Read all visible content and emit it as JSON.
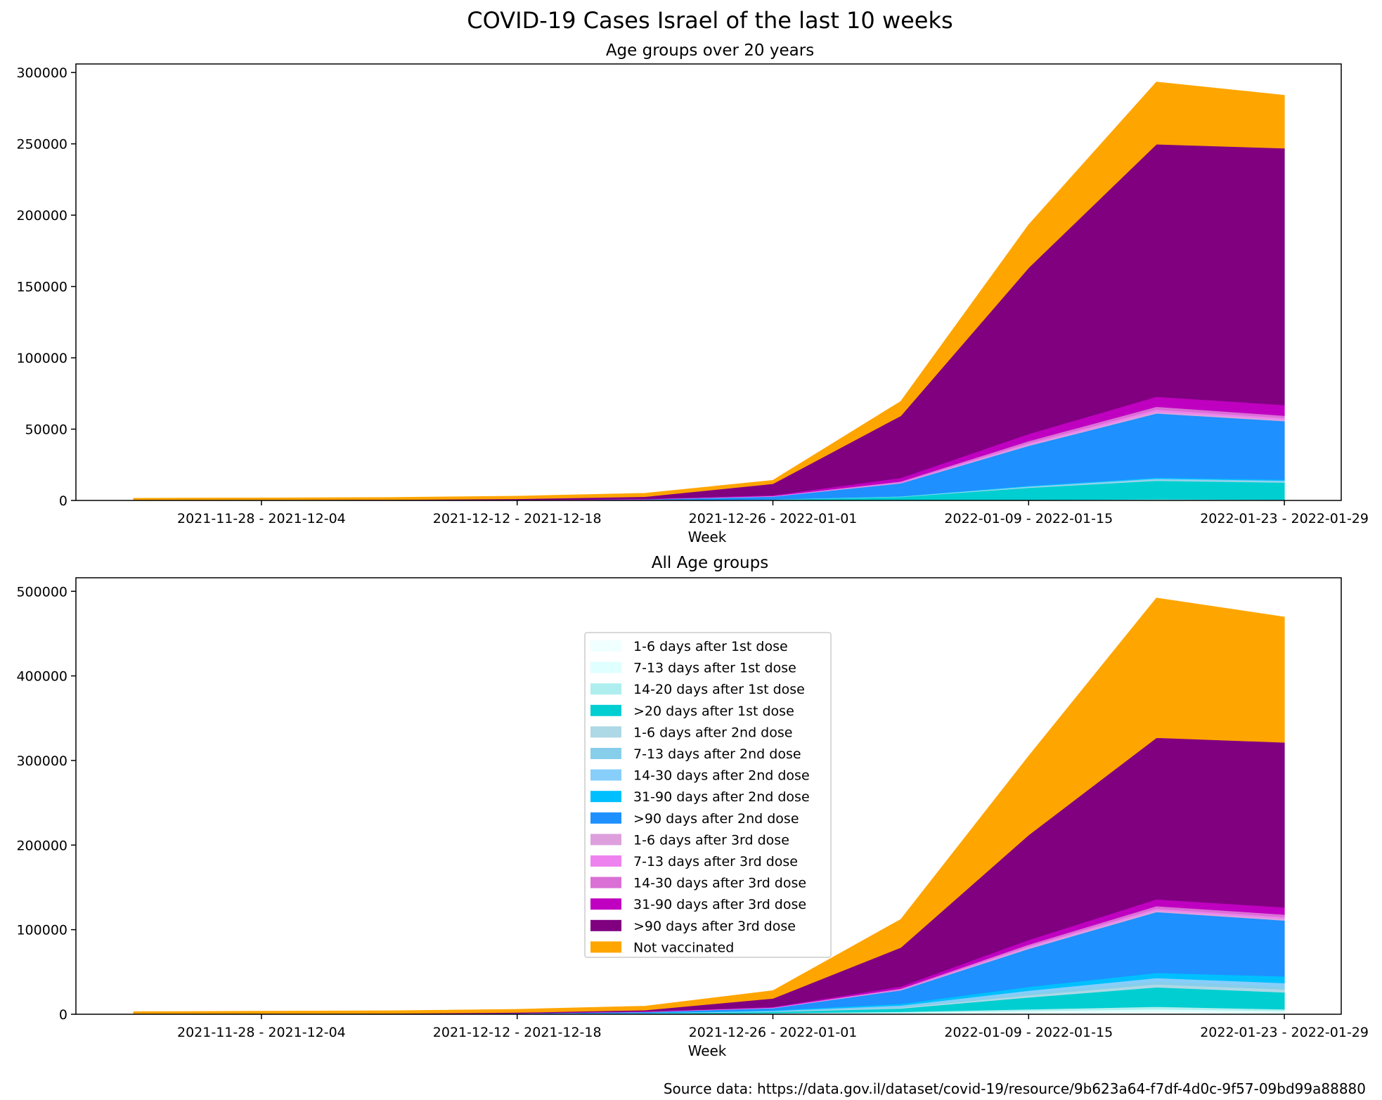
{
  "suptitle": "COVID-19 Cases Israel of the last 10 weeks",
  "source_note": "Source data: https://data.gov.il/dataset/covid-19/resource/9b623a64-f7df-4d0c-9f57-09bd99a88880",
  "series_colors": {
    "1-6 days after 1st dose": "#f0ffff",
    "7-13 days after 1st dose": "#e0ffff",
    "14-20 days after 1st dose": "#afeeee",
    ">20 days after 1st dose": "#00ced1",
    "1-6 days after 2nd dose": "#add8e6",
    "7-13 days after 2nd dose": "#87ceeb",
    "14-30 days after 2nd dose": "#87cefa",
    "31-90 days after 2nd dose": "#00bfff",
    ">90 days after 2nd dose": "#1e90ff",
    "1-6 days after 3rd dose": "#dda0dd",
    "7-13 days after 3rd dose": "#ee82ee",
    "14-30 days after 3rd dose": "#da70d6",
    "31-90 days after 3rd dose": "#c000c0",
    ">90 days after 3rd dose": "#800080",
    "Not vaccinated": "#ffa500"
  },
  "legend": {
    "placement": "center (lower panel)",
    "entries": [
      "1-6 days after 1st dose",
      "7-13 days after 1st dose",
      "14-20 days after 1st dose",
      ">20 days after 1st dose",
      "1-6 days after 2nd dose",
      "7-13 days after 2nd dose",
      "14-30 days after 2nd dose",
      "31-90 days after 2nd dose",
      ">90 days after 2nd dose",
      "1-6 days after 3rd dose",
      "7-13 days after 3rd dose",
      "14-30 days after 3rd dose",
      "31-90 days after 3rd dose",
      ">90 days after 3rd dose",
      "Not vaccinated"
    ]
  },
  "chart_data": [
    {
      "type": "area",
      "stacked": true,
      "title": "Age groups over 20 years",
      "xlabel": "Week",
      "ylabel": "",
      "ylim": [
        0,
        306000
      ],
      "yticks": [
        0,
        50000,
        100000,
        150000,
        200000,
        250000,
        300000
      ],
      "x_weeks": 10,
      "xticks": [
        {
          "index": 1,
          "label": "2021-11-28 - 2021-12-04"
        },
        {
          "index": 3,
          "label": "2021-12-12 - 2021-12-18"
        },
        {
          "index": 5,
          "label": "2021-12-26 - 2022-01-01"
        },
        {
          "index": 7,
          "label": "2022-01-09 - 2022-01-15"
        },
        {
          "index": 9,
          "label": "2022-01-23 - 2022-01-29"
        }
      ],
      "grid": false,
      "series": [
        {
          "name": "1-6 days after 1st dose",
          "values": [
            0,
            0,
            0,
            0,
            0,
            0,
            0,
            100,
            200,
            150
          ]
        },
        {
          "name": "7-13 days after 1st dose",
          "values": [
            0,
            0,
            0,
            0,
            0,
            0,
            0,
            100,
            200,
            150
          ]
        },
        {
          "name": "14-20 days after 1st dose",
          "values": [
            0,
            0,
            0,
            0,
            0,
            0,
            100,
            300,
            500,
            400
          ]
        },
        {
          "name": ">20 days after 1st dose",
          "values": [
            20,
            30,
            40,
            80,
            200,
            600,
            2500,
            8500,
            13000,
            12000
          ]
        },
        {
          "name": "1-6 days after 2nd dose",
          "values": [
            0,
            0,
            0,
            0,
            0,
            50,
            100,
            300,
            500,
            400
          ]
        },
        {
          "name": "7-13 days after 2nd dose",
          "values": [
            0,
            0,
            0,
            0,
            0,
            50,
            100,
            300,
            500,
            400
          ]
        },
        {
          "name": "14-30 days after 2nd dose",
          "values": [
            0,
            0,
            0,
            0,
            0,
            50,
            100,
            300,
            500,
            500
          ]
        },
        {
          "name": "31-90 days after 2nd dose",
          "values": [
            0,
            0,
            0,
            0,
            50,
            100,
            200,
            500,
            700,
            700
          ]
        },
        {
          "name": ">90 days after 2nd dose",
          "values": [
            50,
            80,
            150,
            300,
            600,
            2000,
            9000,
            28000,
            45000,
            41000
          ]
        },
        {
          "name": "1-6 days after 3rd dose",
          "values": [
            0,
            0,
            0,
            0,
            50,
            100,
            300,
            800,
            1200,
            1000
          ]
        },
        {
          "name": "7-13 days after 3rd dose",
          "values": [
            0,
            0,
            0,
            0,
            50,
            100,
            400,
            1000,
            1500,
            1200
          ]
        },
        {
          "name": "14-30 days after 3rd dose",
          "values": [
            0,
            0,
            0,
            0,
            50,
            200,
            600,
            1500,
            2000,
            1600
          ]
        },
        {
          "name": "31-90 days after 3rd dose",
          "values": [
            20,
            30,
            50,
            100,
            200,
            500,
            2500,
            5000,
            7000,
            7500
          ]
        },
        {
          "name": ">90 days after 3rd dose",
          "values": [
            200,
            300,
            400,
            700,
            1500,
            8000,
            43500,
            116500,
            177000,
            180000
          ]
        },
        {
          "name": "Not vaccinated",
          "values": [
            1200,
            1300,
            1400,
            1800,
            2300,
            2300,
            10000,
            30000,
            43500,
            37000
          ]
        }
      ]
    },
    {
      "type": "area",
      "stacked": true,
      "title": "All Age groups",
      "xlabel": "Week",
      "ylabel": "",
      "ylim": [
        0,
        516000
      ],
      "yticks": [
        0,
        100000,
        200000,
        300000,
        400000,
        500000
      ],
      "x_weeks": 10,
      "xticks": [
        {
          "index": 1,
          "label": "2021-11-28 - 2021-12-04"
        },
        {
          "index": 3,
          "label": "2021-12-12 - 2021-12-18"
        },
        {
          "index": 5,
          "label": "2021-12-26 - 2022-01-01"
        },
        {
          "index": 7,
          "label": "2022-01-09 - 2022-01-15"
        },
        {
          "index": 9,
          "label": "2022-01-23 - 2022-01-29"
        }
      ],
      "grid": false,
      "series": [
        {
          "name": "1-6 days after 1st dose",
          "values": [
            30,
            40,
            50,
            100,
            200,
            500,
            1000,
            2000,
            3000,
            2000
          ]
        },
        {
          "name": "7-13 days after 1st dose",
          "values": [
            30,
            40,
            50,
            100,
            200,
            500,
            1000,
            2000,
            3000,
            2000
          ]
        },
        {
          "name": "14-20 days after 1st dose",
          "values": [
            30,
            40,
            50,
            100,
            200,
            500,
            1000,
            2000,
            3000,
            2000
          ]
        },
        {
          "name": ">20 days after 1st dose",
          "values": [
            50,
            70,
            100,
            200,
            500,
            1500,
            4000,
            14000,
            23000,
            20000
          ]
        },
        {
          "name": "1-6 days after 2nd dose",
          "values": [
            0,
            0,
            0,
            50,
            100,
            300,
            1000,
            2500,
            3500,
            3500
          ]
        },
        {
          "name": "7-13 days after 2nd dose",
          "values": [
            0,
            0,
            0,
            50,
            100,
            300,
            1000,
            2500,
            3500,
            3500
          ]
        },
        {
          "name": "14-30 days after 2nd dose",
          "values": [
            0,
            0,
            50,
            100,
            200,
            500,
            1500,
            3000,
            4000,
            4000
          ]
        },
        {
          "name": "31-90 days after 2nd dose",
          "values": [
            20,
            30,
            50,
            100,
            300,
            800,
            2000,
            4500,
            6000,
            8000
          ]
        },
        {
          "name": ">90 days after 2nd dose",
          "values": [
            80,
            120,
            200,
            400,
            1000,
            2500,
            16000,
            45000,
            72000,
            66000
          ]
        },
        {
          "name": "1-6 days after 3rd dose",
          "values": [
            0,
            0,
            0,
            50,
            100,
            200,
            500,
            1500,
            2000,
            2000
          ]
        },
        {
          "name": "7-13 days after 3rd dose",
          "values": [
            0,
            0,
            0,
            50,
            100,
            200,
            500,
            1500,
            2000,
            2000
          ]
        },
        {
          "name": "14-30 days after 3rd dose",
          "values": [
            0,
            0,
            50,
            50,
            100,
            300,
            1000,
            2000,
            3000,
            3000
          ]
        },
        {
          "name": "31-90 days after 3rd dose",
          "values": [
            30,
            40,
            50,
            100,
            300,
            700,
            2500,
            5500,
            8000,
            8500
          ]
        },
        {
          "name": ">90 days after 3rd dose",
          "values": [
            200,
            300,
            400,
            800,
            1600,
            10000,
            46000,
            124000,
            191000,
            195000
          ]
        },
        {
          "name": "Not vaccinated",
          "values": [
            2500,
            2800,
            3000,
            3500,
            4500,
            9000,
            33000,
            93000,
            165000,
            148000
          ]
        }
      ]
    }
  ]
}
